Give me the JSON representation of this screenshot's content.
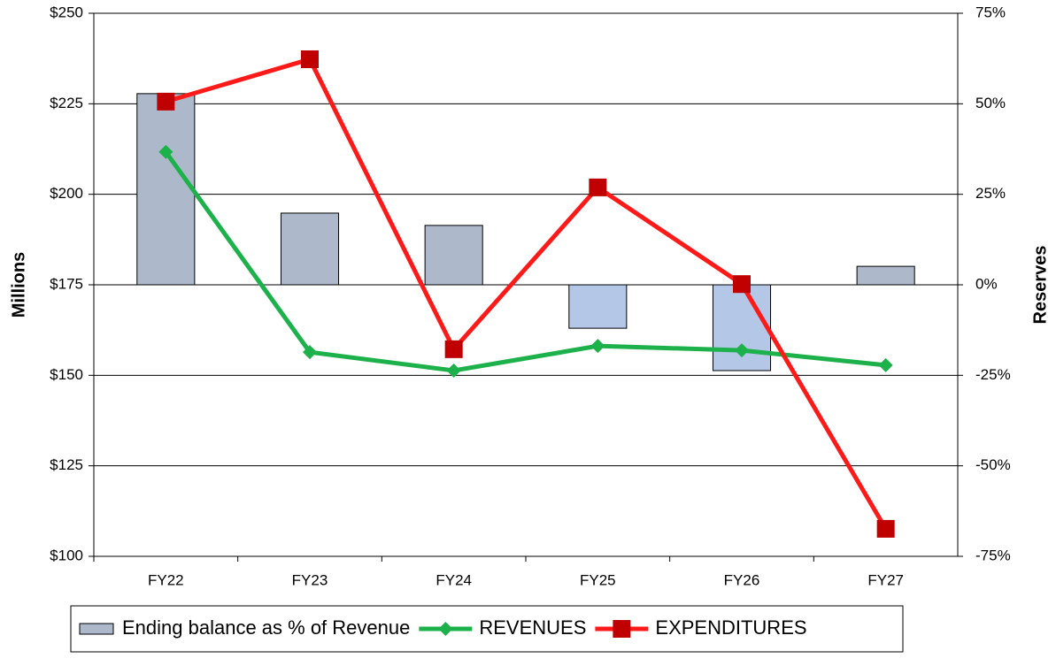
{
  "chart_data": {
    "type": "bar_line",
    "categories": [
      "FY22",
      "FY23",
      "FY24",
      "FY25",
      "FY26",
      "FY27"
    ],
    "ylabel": "Millions",
    "y2label": "Reserves",
    "ylim": [
      100,
      250
    ],
    "yticks": [
      {
        "value": 100,
        "label": "$100"
      },
      {
        "value": 125,
        "label": "$125"
      },
      {
        "value": 150,
        "label": "$150"
      },
      {
        "value": 175,
        "label": "$175"
      },
      {
        "value": 200,
        "label": "$200"
      },
      {
        "value": 225,
        "label": "$225"
      },
      {
        "value": 250,
        "label": "$250"
      }
    ],
    "y2lim": [
      -75,
      75
    ],
    "y2ticks": [
      {
        "value": -75,
        "label": "-75%"
      },
      {
        "value": -50,
        "label": "-50%"
      },
      {
        "value": -25,
        "label": "-25%"
      },
      {
        "value": 0,
        "label": "0%"
      },
      {
        "value": 25,
        "label": "25%"
      },
      {
        "value": 50,
        "label": "50%"
      },
      {
        "value": 75,
        "label": "75%"
      }
    ],
    "grid": true,
    "legend": "bottom",
    "series": [
      {
        "name": "Ending balance as % of Revenue",
        "type": "bar",
        "axis": "y2",
        "color": "#adb9ca",
        "colors": [
          "#adb9ca",
          "#adb9ca",
          "#adb9ca",
          "#b4c7e7",
          "#b4c7e7",
          "#adb9ca"
        ],
        "values": [
          52.8,
          19.8,
          16.4,
          -12.0,
          -23.7,
          5.1
        ]
      },
      {
        "name": "REVENUES",
        "type": "line",
        "marker": "diamond",
        "color": "#1db14b",
        "values": [
          211.7,
          156.4,
          151.3,
          158.1,
          156.9,
          152.8
        ]
      },
      {
        "name": "EXPENDITURES",
        "type": "line",
        "marker": "square",
        "color": "#ff1a1a",
        "values": [
          225.6,
          237.3,
          157.2,
          201.9,
          175.2,
          107.6
        ]
      }
    ]
  }
}
